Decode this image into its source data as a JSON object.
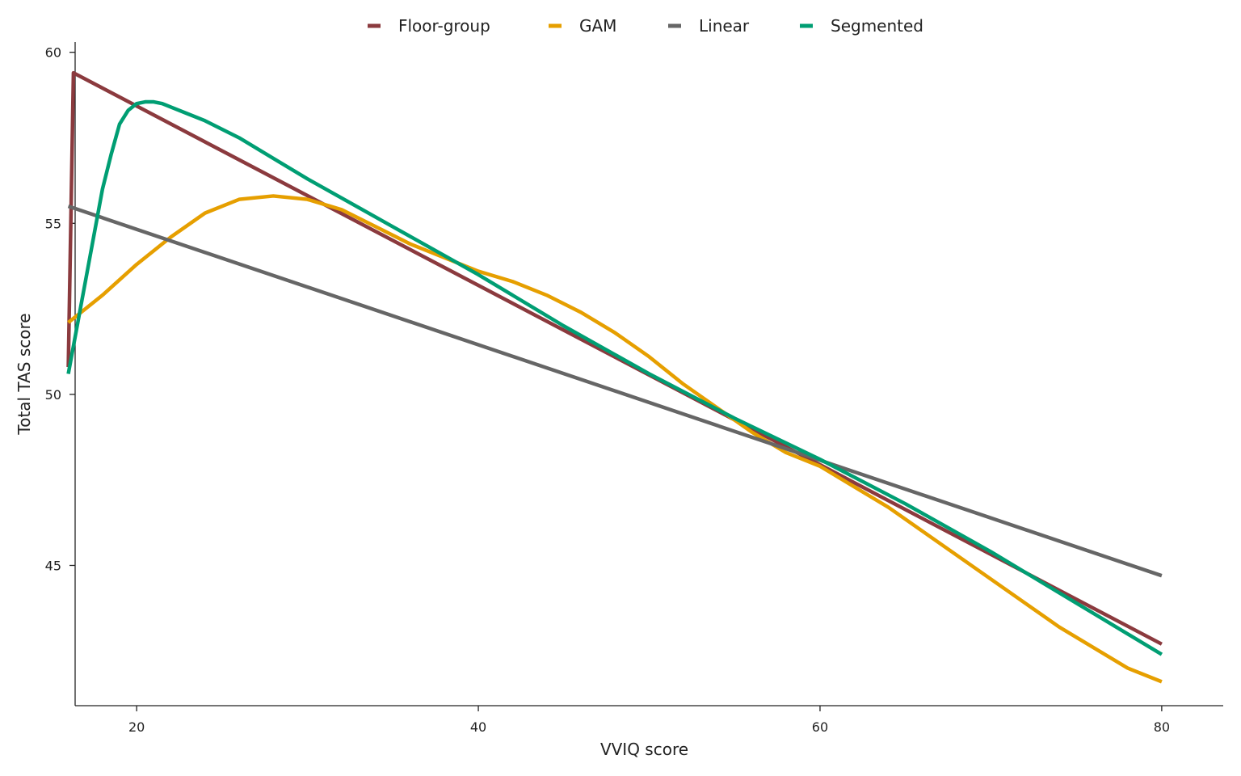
{
  "chart_data": {
    "type": "line",
    "title": "",
    "xlabel": "VVIQ score",
    "ylabel": "Total TAS score",
    "xlim": [
      16.4,
      83.6
    ],
    "ylim": [
      40.9,
      60.3
    ],
    "xticks": [
      20,
      40,
      60,
      80
    ],
    "yticks": [
      45,
      50,
      55,
      60
    ],
    "grid": false,
    "legend_position": "top-center",
    "series": [
      {
        "name": "Floor-group",
        "color": "#8b3a3e",
        "x": [
          16,
          16.3,
          80
        ],
        "y": [
          50.8,
          59.4,
          42.7
        ]
      },
      {
        "name": "GAM",
        "color": "#e69f00",
        "x": [
          16,
          18,
          20,
          22,
          24,
          26,
          28,
          30,
          32,
          34,
          36,
          38,
          40,
          42,
          44,
          46,
          48,
          50,
          52,
          54,
          56,
          58,
          60,
          62,
          64,
          66,
          68,
          70,
          72,
          74,
          76,
          78,
          80
        ],
        "y": [
          52.1,
          52.9,
          53.8,
          54.6,
          55.3,
          55.7,
          55.8,
          55.7,
          55.4,
          54.9,
          54.4,
          54.0,
          53.6,
          53.3,
          52.9,
          52.4,
          51.8,
          51.1,
          50.3,
          49.6,
          48.9,
          48.3,
          47.9,
          47.3,
          46.7,
          46.0,
          45.3,
          44.6,
          43.9,
          43.2,
          42.6,
          42.0,
          41.6
        ]
      },
      {
        "name": "Linear",
        "color": "#666666",
        "x": [
          16,
          80
        ],
        "y": [
          55.5,
          44.7
        ]
      },
      {
        "name": "Segmented",
        "color": "#009e73",
        "x": [
          16,
          17,
          18,
          18.5,
          19,
          19.5,
          20,
          20.5,
          21,
          21.5,
          22,
          23,
          24,
          26,
          28,
          30,
          35,
          40,
          45,
          50,
          55,
          60,
          65,
          70,
          75,
          80
        ],
        "y": [
          50.6,
          53.3,
          56.0,
          57.0,
          57.9,
          58.3,
          58.5,
          58.55,
          58.55,
          58.5,
          58.4,
          58.2,
          58.0,
          57.5,
          56.9,
          56.3,
          54.9,
          53.5,
          52.0,
          50.6,
          49.3,
          48.1,
          46.8,
          45.4,
          43.9,
          42.4
        ]
      }
    ]
  }
}
